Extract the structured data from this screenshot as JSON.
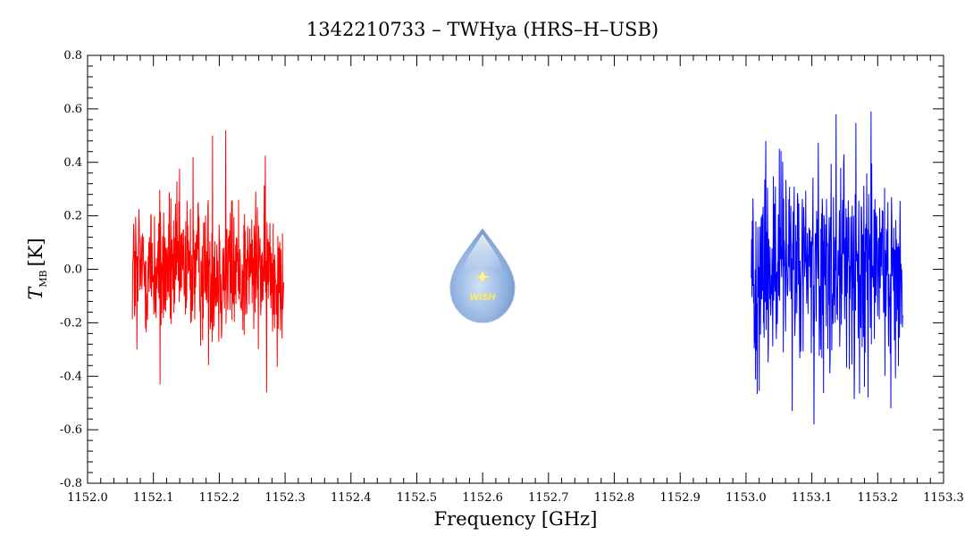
{
  "chart_data": {
    "type": "line",
    "title": "1342210733 – TWHya (HRS–H–USB)",
    "xlabel": "Frequency [GHz]",
    "ylabel": {
      "symbol": "T",
      "subscript": "MB",
      "unit": "[K]"
    },
    "xlim": [
      1152.0,
      1153.3
    ],
    "ylim": [
      -0.8,
      0.8
    ],
    "x_ticks": [
      "1152.0",
      "1152.1",
      "1152.2",
      "1152.3",
      "1152.4",
      "1152.5",
      "1152.6",
      "1152.7",
      "1152.8",
      "1152.9",
      "1153.0",
      "1153.1",
      "1153.2",
      "1153.3"
    ],
    "y_ticks": [
      "-0.8",
      "-0.6",
      "-0.4",
      "-0.2",
      "0.0",
      "0.2",
      "0.4",
      "0.6",
      "0.8"
    ],
    "grid": false,
    "legend": "none",
    "logo_text": "WISH",
    "series": [
      {
        "color": "#ff0000",
        "x_range": [
          1152.068,
          1152.298
        ],
        "points": 460,
        "rms": 0.14,
        "extremes": [
          {
            "x": 1152.11,
            "y": -0.43
          },
          {
            "x": 1152.21,
            "y": 0.52
          },
          {
            "x": 1152.19,
            "y": 0.5
          },
          {
            "x": 1152.272,
            "y": -0.46
          },
          {
            "x": 1152.16,
            "y": 0.42
          },
          {
            "x": 1152.075,
            "y": -0.3
          }
        ]
      },
      {
        "color": "#0000ff",
        "x_range": [
          1153.008,
          1153.238
        ],
        "points": 460,
        "rms": 0.2,
        "extremes": [
          {
            "x": 1153.07,
            "y": -0.53
          },
          {
            "x": 1153.103,
            "y": -0.58
          },
          {
            "x": 1153.19,
            "y": 0.59
          },
          {
            "x": 1153.137,
            "y": 0.58
          },
          {
            "x": 1153.22,
            "y": -0.52
          },
          {
            "x": 1153.03,
            "y": 0.48
          }
        ]
      }
    ]
  }
}
